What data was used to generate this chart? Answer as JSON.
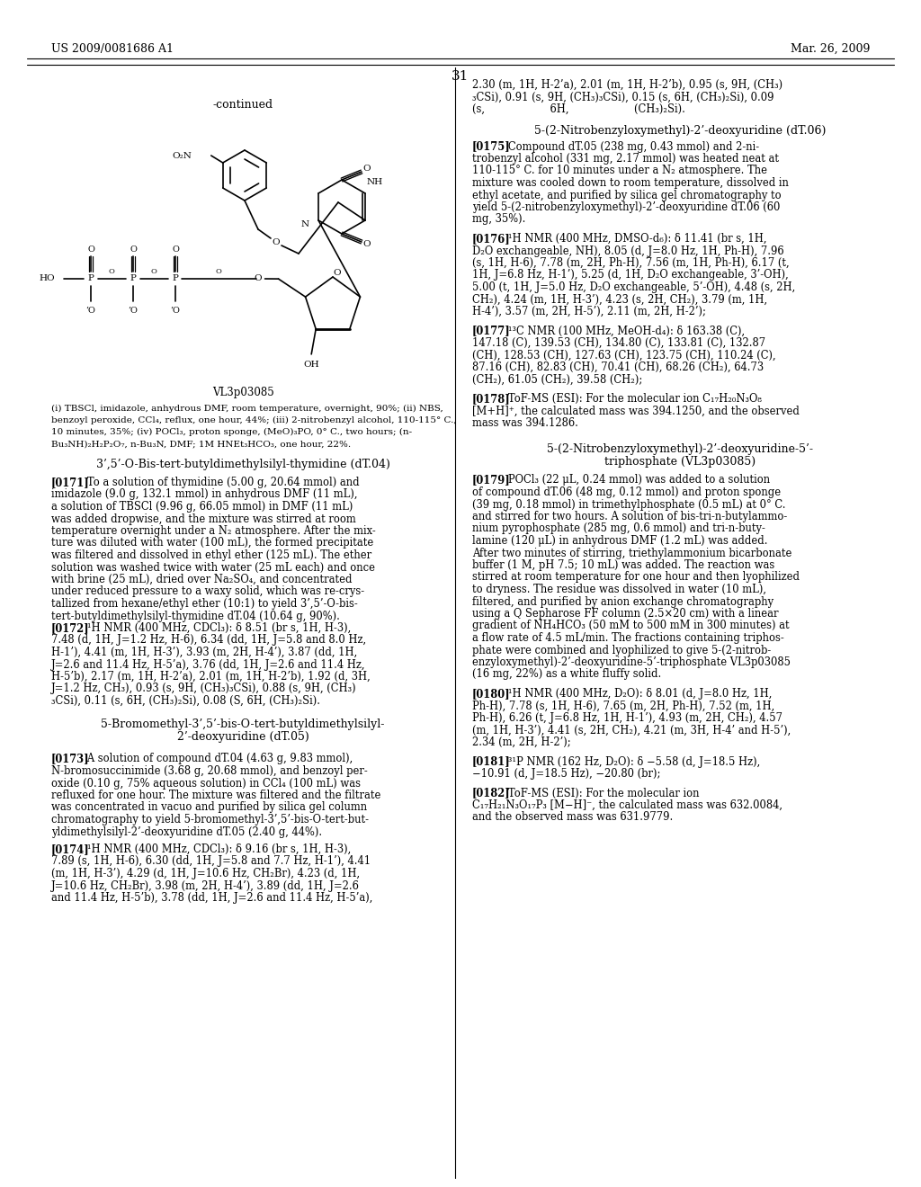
{
  "page_number": "31",
  "header_left": "US 2009/0081686 A1",
  "header_right": "Mar. 26, 2009",
  "background_color": "#ffffff",
  "text_color": "#000000",
  "fig_width": 10.24,
  "fig_height": 13.2,
  "dpi": 100
}
